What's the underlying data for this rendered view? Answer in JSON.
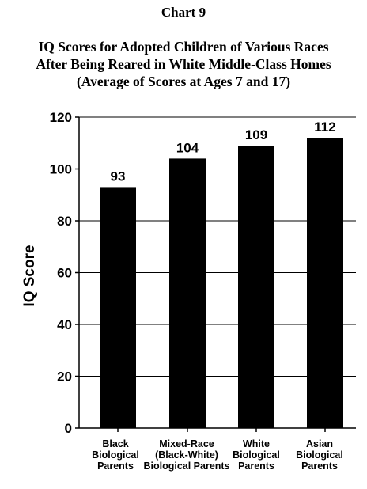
{
  "header": {
    "chart_number": "Chart 9"
  },
  "chart_data": {
    "type": "bar",
    "title_lines": [
      "IQ Scores for Adopted Children of Various Races",
      "After Being Reared in White Middle-Class Homes",
      "(Average of Scores at Ages 7 and 17)"
    ],
    "ylabel": "IQ Score",
    "xlabel": "",
    "ylim": [
      0,
      120
    ],
    "yticks": [
      0,
      20,
      40,
      60,
      80,
      100,
      120
    ],
    "grid": true,
    "categories": [
      [
        "Black",
        "Biological",
        "Parents"
      ],
      [
        "Mixed-Race",
        "(Black-White)",
        "Biological Parents"
      ],
      [
        "White",
        "Biological",
        "Parents"
      ],
      [
        "Asian",
        "Biological",
        "Parents"
      ]
    ],
    "values": [
      93,
      104,
      109,
      112
    ],
    "bar_color": "#000000"
  }
}
